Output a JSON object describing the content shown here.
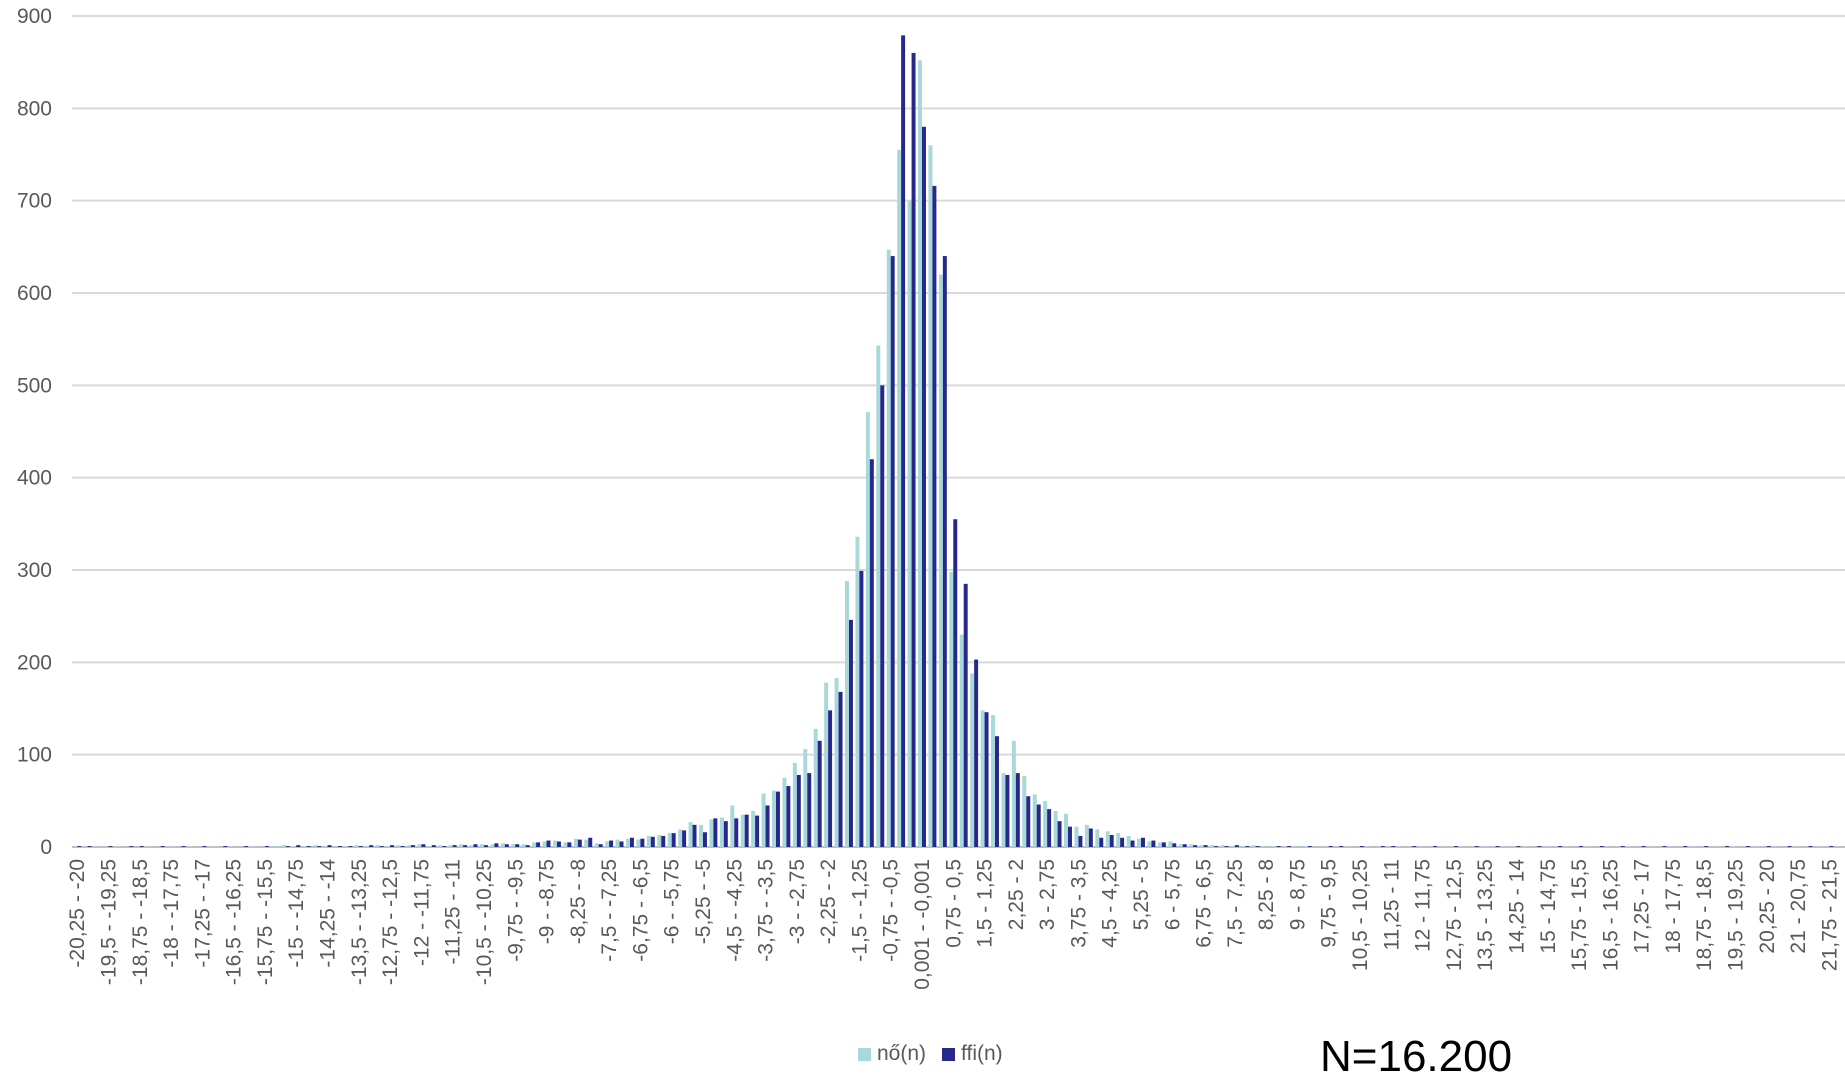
{
  "chart_data": {
    "type": "bar",
    "ylim": [
      0,
      900
    ],
    "yticks": [
      0,
      100,
      200,
      300,
      400,
      500,
      600,
      700,
      800,
      900
    ],
    "grid": true,
    "legend_position": "bottom",
    "categories": [
      "-20,25 - -20",
      "-20 - -19,75",
      "-19,75 - -19,5",
      "-19,5 - -19,25",
      "-19,25 - -19",
      "-19 - -18,75",
      "-18,75 - -18,5",
      "-18,5 - -18,25",
      "-18,25 - -18",
      "-18 - -17,75",
      "-17,75 - -17,5",
      "-17,5 - -17,25",
      "-17,25 - -17",
      "-17 - -16,75",
      "-16,75 - -16,5",
      "-16,5 - -16,25",
      "-16,25 - -16",
      "-16 - -15,75",
      "-15,75 - -15,5",
      "-15,5 - -15,25",
      "-15,25 - -15",
      "-15 - -14,75",
      "-14,75 - -14,5",
      "-14,5 - -14,25",
      "-14,25 - -14",
      "-14 - -13,75",
      "-13,75 - -13,5",
      "-13,5 - -13,25",
      "-13,25 - -13",
      "-13 - -12,75",
      "-12,75 - -12,5",
      "-12,5 - -12,25",
      "-12,25 - -12",
      "-12 - -11,75",
      "-11,75 - -11,5",
      "-11,5 - -11,25",
      "-11,25 - -11",
      "-11 - -10,75",
      "-10,75 - -10,5",
      "-10,5 - -10,25",
      "-10,25 - -10",
      "-10 - -9,75",
      "-9,75 - -9,5",
      "-9,5 - -9,25",
      "-9,25 - -9",
      "-9 - -8,75",
      "-8,75 - -8,5",
      "-8,5 - -8,25",
      "-8,25 - -8",
      "-8 - -7,75",
      "-7,75 - -7,5",
      "-7,5 - -7,25",
      "-7,25 - -7",
      "-7 - -6,75",
      "-6,75 - -6,5",
      "-6,5 - -6,25",
      "-6,25 - -6",
      "-6 - -5,75",
      "-5,75 - -5,5",
      "-5,5 - -5,25",
      "-5,25 - -5",
      "-5 - -4,75",
      "-4,75 - -4,5",
      "-4,5 - -4,25",
      "-4,25 - -4",
      "-4 - -3,75",
      "-3,75 - -3,5",
      "-3,5 - -3,25",
      "-3,25 - -3",
      "-3 - -2,75",
      "-2,75 - -2,5",
      "-2,5 - -2,25",
      "-2,25 - -2",
      "-2 - -1,75",
      "-1,75 - -1,5",
      "-1,5 - -1,25",
      "-1,25 - -1",
      "-1 - -0,75",
      "-0,75 - -0,5",
      "-0,5 - -0,25",
      "-0,25 - -0,001",
      "-0,001 - 0,001",
      "0,001 - 0,25",
      "0,25 - 0,5",
      "0,5 - 0,75",
      "0,75 - 1",
      "1 - 1,25",
      "1,25 - 1,5",
      "1,5 - 1,75",
      "1,75 - 2",
      "2 - 2,25",
      "2,25 - 2,5",
      "2,5 - 2,75",
      "2,75 - 3",
      "3 - 3,25",
      "3,25 - 3,5",
      "3,5 - 3,75",
      "3,75 - 4",
      "4 - 4,25",
      "4,25 - 4,5",
      "4,5 - 4,75",
      "4,75 - 5",
      "5 - 5,25",
      "5,25 - 5,5",
      "5,5 - 5,75",
      "5,75 - 6",
      "6 - 6,25",
      "6,25 - 6,5",
      "6,5 - 6,75",
      "6,75 - 7",
      "7 - 7,25",
      "7,25 - 7,5",
      "7,5 - 7,75",
      "7,75 - 8",
      "8 - 8,25",
      "8,25 - 8,5",
      "8,5 - 8,75",
      "8,75 - 9",
      "9 - 9,25",
      "9,25 - 9,5",
      "9,5 - 9,75",
      "9,75 - 10",
      "10 - 10,25",
      "10,25 - 10,5",
      "10,5 - 10,75",
      "10,75 - 11",
      "11 - 11,25",
      "11,25 - 11,5",
      "11,5 - 11,75",
      "11,75 - 12",
      "12 - 12,25",
      "12,25 - 12,5",
      "12,5 - 12,75",
      "12,75 - 13",
      "13 - 13,25",
      "13,25 - 13,5",
      "13,5 - 13,75",
      "13,75 - 14",
      "14 - 14,25",
      "14,25 - 14,5",
      "14,5 - 14,75",
      "14,75 - 15",
      "15 - 15,25",
      "15,25 - 15,5",
      "15,5 - 15,75",
      "15,75 - 16",
      "16 - 16,25",
      "16,25 - 16,5",
      "16,5 - 16,75",
      "16,75 - 17",
      "17 - 17,25",
      "17,25 - 17,5",
      "17,5 - 17,75",
      "17,75 - 18",
      "18 - 18,25",
      "18,25 - 18,5",
      "18,5 - 18,75",
      "18,75 - 19",
      "19 - 19,25",
      "19,25 - 19,5",
      "19,5 - 19,75",
      "19,75 - 20",
      "20 - 20,25",
      "20,25 - 20,5",
      "20,5 - 20,75",
      "20,75 - 21",
      "21 - 21,25",
      "21,25 - 21,5",
      "21,5 - 21,75",
      "21,75 - 22"
    ],
    "visible_tick_labels": [
      "-20,25 - -20",
      "-19,5 - -19,25",
      "-18,75 - -18,5",
      "-18 - -17,75",
      "-17,25 - -17",
      "-16,5 - -16,25",
      "-15,75 - -15,5",
      "-15 - -14,75",
      "-14,25 - -14",
      "-13,5 - -13,25",
      "-12,75 - -12,5",
      "-12 - -11,75",
      "-11,25 - -11",
      "-10,5 - -10,25",
      "-9,75 - -9,5",
      "-9 - -8,75",
      "-8,25 - -8",
      "-7,5 - -7,25",
      "-6,75 - -6,5",
      "-6 - -5,75",
      "-5,25 - -5",
      "-4,5 - -4,25",
      "-3,75 - -3,5",
      "-3 - -2,75",
      "-2,25 - -2",
      "-1,5 - -1,25",
      "-0,75 - -0,5",
      "0,001 - -0,001",
      "0,75 - 0,5",
      "1,5 - 1,25",
      "2,25 - 2",
      "3 - 2,75",
      "3,75 - 3,5",
      "4,5 - 4,25",
      "5,25 - 5",
      "6 - 5,75",
      "6,75 - 6,5",
      "7,5 - 7,25",
      "8,25 - 8",
      "9 - 8,75",
      "9,75 - 9,5",
      "10,5 - 10,25",
      "11,25 - 11",
      "12 - 11,75",
      "12,75 - 12,5",
      "13,5 - 13,25",
      "14,25 - 14",
      "15 - 14,75",
      "15,75 - 15,5",
      "16,5 - 16,25",
      "17,25 - 17",
      "18 - 17,75",
      "18,75 - 18,5",
      "19,5 - 19,25",
      "20,25 - 20",
      "21 - 20,75",
      "21,75 - 21,5"
    ],
    "series": [
      {
        "name": "nő(n)",
        "color": "#a9d8da",
        "values": [
          1,
          0,
          1,
          0,
          1,
          0,
          0,
          1,
          0,
          1,
          0,
          1,
          0,
          1,
          0,
          1,
          0,
          1,
          0,
          1,
          2,
          1,
          1,
          2,
          1,
          0,
          1,
          2,
          1,
          2,
          1,
          2,
          2,
          3,
          1,
          2,
          2,
          3,
          2,
          3,
          3,
          4,
          3,
          3,
          5,
          6,
          7,
          5,
          9,
          8,
          4,
          6,
          8,
          9,
          8,
          12,
          13,
          15,
          19,
          27,
          24,
          30,
          32,
          45,
          35,
          39,
          58,
          61,
          75,
          91,
          106,
          128,
          178,
          183,
          288,
          336,
          471,
          543,
          647,
          755,
          700,
          852,
          760,
          620,
          298,
          230,
          188,
          148,
          143,
          80,
          115,
          77,
          57,
          50,
          39,
          36,
          22,
          24,
          19,
          17,
          15,
          12,
          9,
          6,
          5,
          6,
          3,
          3,
          2,
          2,
          2,
          1,
          1,
          2,
          1,
          1,
          0,
          1,
          1,
          0,
          1,
          0,
          1,
          0,
          1,
          1,
          0,
          1,
          0,
          1,
          0,
          1,
          0,
          1,
          0,
          1,
          0,
          1,
          0,
          1,
          0,
          1,
          0,
          1,
          0,
          1,
          0,
          1,
          0,
          1,
          0,
          1,
          0,
          1,
          0,
          1,
          0,
          1,
          0,
          1,
          0,
          1,
          0,
          1,
          0,
          1,
          0,
          1,
          0,
          1
        ]
      },
      {
        "name": "ffi(n)",
        "color": "#26288c",
        "values": [
          1,
          1,
          0,
          1,
          0,
          1,
          1,
          0,
          1,
          0,
          1,
          0,
          1,
          0,
          1,
          0,
          1,
          0,
          1,
          0,
          1,
          2,
          1,
          1,
          2,
          1,
          1,
          1,
          2,
          1,
          2,
          1,
          2,
          3,
          2,
          1,
          2,
          2,
          3,
          2,
          4,
          3,
          3,
          2,
          5,
          7,
          6,
          5,
          8,
          10,
          3,
          7,
          6,
          10,
          9,
          11,
          12,
          15,
          18,
          24,
          16,
          31,
          28,
          31,
          35,
          34,
          45,
          60,
          66,
          78,
          80,
          115,
          148,
          168,
          246,
          299,
          420,
          500,
          640,
          879,
          860,
          780,
          716,
          640,
          355,
          285,
          203,
          146,
          120,
          78,
          80,
          55,
          46,
          41,
          28,
          22,
          12,
          20,
          10,
          13,
          10,
          7,
          10,
          7,
          5,
          4,
          3,
          2,
          2,
          1,
          1,
          2,
          1,
          1,
          0,
          1,
          1,
          0,
          1,
          0,
          1,
          1,
          0,
          1,
          0,
          1,
          1,
          0,
          1,
          0,
          1,
          0,
          1,
          0,
          1,
          0,
          1,
          0,
          1,
          0,
          1,
          0,
          1,
          0,
          1,
          0,
          1,
          0,
          1,
          0,
          1,
          0,
          1,
          0,
          1,
          0,
          1,
          0,
          1,
          0,
          1,
          0,
          1,
          0,
          1,
          0,
          1,
          0,
          1,
          0
        ]
      }
    ],
    "annotations": [
      "N=16.200"
    ]
  },
  "legend": {
    "items": [
      {
        "label": "nő(n)",
        "color": "#a9d8da"
      },
      {
        "label": "ffi(n)",
        "color": "#26288c"
      }
    ]
  },
  "note": "N=16.200"
}
